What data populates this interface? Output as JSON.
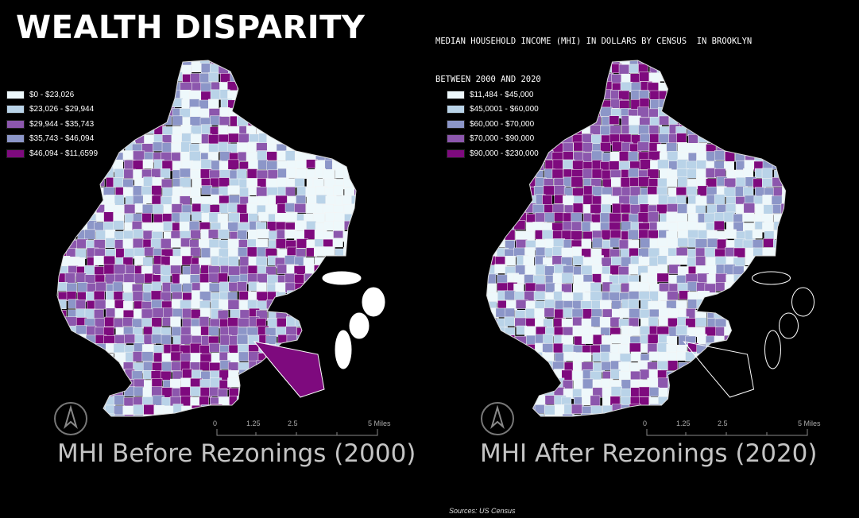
{
  "title": "WEALTH DISPARITY",
  "subtitle": {
    "line1": "MEDIAN HOUSEHOLD INCOME (MHI) IN DOLLARS BY CENSUS  IN BROOKLYN",
    "line2": "BETWEEN 2000 AND 2020"
  },
  "maps": [
    {
      "caption": "MHI Before Rezonings (2000)",
      "legend": [
        {
          "label": "$0 - $23,026",
          "color": "#eef8fb"
        },
        {
          "label": "$23,026 - $29,944",
          "color": "#b9d3e8"
        },
        {
          "label": "$29,944 - $35,743",
          "color": "#8c57ad"
        },
        {
          "label": "$35,743 - $46,094",
          "color": "#8c96c8"
        },
        {
          "label": "$46,094 - $11,6599",
          "color": "#7e0a7e"
        }
      ]
    },
    {
      "caption": "MHI After Rezonings (2020)",
      "legend": [
        {
          "label": "$11,484 - $45,000",
          "color": "#eef8fb"
        },
        {
          "label": "$45,0001 - $60,000",
          "color": "#b9d3e8"
        },
        {
          "label": "$60,000 - $70,000",
          "color": "#8c96c8"
        },
        {
          "label": "$70,000 - $90,000",
          "color": "#8c57ad"
        },
        {
          "label": "$90,000 - $230,000",
          "color": "#7e0a7e"
        }
      ]
    }
  ],
  "scale": {
    "t0": "0",
    "t1": "1.25",
    "t2": "2.5",
    "t3": "5 Miles"
  },
  "north_icon": "north-arrow-icon",
  "source": "Sources: US Census"
}
